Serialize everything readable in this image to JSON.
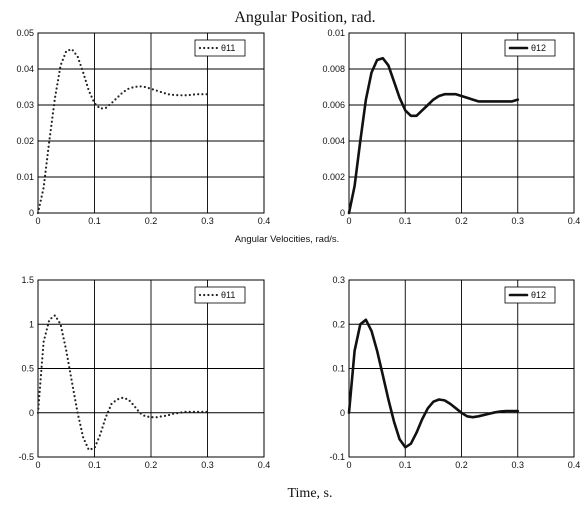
{
  "figure": {
    "title": "Angular Position, rad.",
    "middle_label": "Angular Velocities, rad/s.",
    "xlabel": "Time, s."
  },
  "chart_data": [
    {
      "type": "line",
      "xlim": [
        0,
        0.4
      ],
      "ylim": [
        0,
        0.05
      ],
      "xticks": [
        "0",
        "0.1",
        "0.2",
        "0.3",
        "0.4"
      ],
      "yticks": [
        "0",
        "0.01",
        "0.02",
        "0.03",
        "0.04",
        "0.05"
      ],
      "grid": true,
      "legend": "top-right",
      "series": [
        {
          "name": "θ11",
          "style": "dotted",
          "color": "#222222",
          "x": [
            0,
            0.01,
            0.02,
            0.03,
            0.04,
            0.05,
            0.06,
            0.07,
            0.08,
            0.09,
            0.1,
            0.11,
            0.12,
            0.13,
            0.14,
            0.15,
            0.16,
            0.17,
            0.18,
            0.19,
            0.2,
            0.21,
            0.22,
            0.23,
            0.24,
            0.25,
            0.26,
            0.27,
            0.28,
            0.29,
            0.3
          ],
          "y": [
            0,
            0.007,
            0.02,
            0.032,
            0.041,
            0.045,
            0.0455,
            0.0435,
            0.039,
            0.034,
            0.0305,
            0.029,
            0.0292,
            0.0305,
            0.032,
            0.0335,
            0.0345,
            0.035,
            0.0352,
            0.035,
            0.0345,
            0.034,
            0.0335,
            0.033,
            0.0328,
            0.0327,
            0.0327,
            0.0328,
            0.033,
            0.033,
            0.033
          ]
        }
      ]
    },
    {
      "type": "line",
      "xlim": [
        0,
        0.4
      ],
      "ylim": [
        0,
        0.01
      ],
      "xticks": [
        "0",
        "0.1",
        "0.2",
        "0.3",
        "0.4"
      ],
      "yticks": [
        "0",
        "0.002",
        "0.004",
        "0.006",
        "0.008",
        "0.01"
      ],
      "grid": true,
      "legend": "top-right",
      "series": [
        {
          "name": "θ12",
          "style": "solid-thick",
          "color": "#111111",
          "x": [
            0,
            0.01,
            0.02,
            0.03,
            0.04,
            0.05,
            0.06,
            0.07,
            0.08,
            0.09,
            0.1,
            0.11,
            0.12,
            0.13,
            0.14,
            0.15,
            0.16,
            0.17,
            0.18,
            0.19,
            0.2,
            0.21,
            0.22,
            0.23,
            0.24,
            0.25,
            0.26,
            0.27,
            0.28,
            0.29,
            0.3
          ],
          "y": [
            0,
            0.0015,
            0.004,
            0.0063,
            0.0078,
            0.0085,
            0.0086,
            0.0082,
            0.0073,
            0.0064,
            0.0057,
            0.0054,
            0.0054,
            0.0057,
            0.006,
            0.0063,
            0.0065,
            0.0066,
            0.0066,
            0.0066,
            0.0065,
            0.0064,
            0.0063,
            0.0062,
            0.0062,
            0.0062,
            0.0062,
            0.0062,
            0.0062,
            0.0062,
            0.0063
          ]
        }
      ]
    },
    {
      "type": "line",
      "xlim": [
        0,
        0.4
      ],
      "ylim": [
        -0.5,
        1.5
      ],
      "xticks": [
        "0",
        "0.1",
        "0.2",
        "0.3",
        "0.4"
      ],
      "yticks": [
        "-0.5",
        "0",
        "0.5",
        "1",
        "1.5"
      ],
      "grid": true,
      "legend": "top-right",
      "series": [
        {
          "name": "θ11",
          "style": "dotted",
          "color": "#222222",
          "x": [
            0,
            0.01,
            0.02,
            0.03,
            0.04,
            0.05,
            0.06,
            0.07,
            0.08,
            0.09,
            0.1,
            0.11,
            0.12,
            0.13,
            0.14,
            0.15,
            0.16,
            0.17,
            0.18,
            0.19,
            0.2,
            0.21,
            0.22,
            0.23,
            0.24,
            0.25,
            0.26,
            0.27,
            0.28,
            0.29,
            0.3
          ],
          "y": [
            0,
            0.8,
            1.05,
            1.1,
            1.0,
            0.7,
            0.35,
            0.0,
            -0.28,
            -0.42,
            -0.4,
            -0.25,
            -0.05,
            0.1,
            0.15,
            0.17,
            0.15,
            0.08,
            0.0,
            -0.04,
            -0.05,
            -0.05,
            -0.04,
            -0.03,
            -0.01,
            0.0,
            0.01,
            0.01,
            0.01,
            0.01,
            0.01
          ]
        }
      ]
    },
    {
      "type": "line",
      "xlim": [
        0,
        0.4
      ],
      "ylim": [
        -0.1,
        0.3
      ],
      "xticks": [
        "0",
        "0.1",
        "0.2",
        "0.3",
        "0.4"
      ],
      "yticks": [
        "-0.1",
        "0",
        "0.1",
        "0.2",
        "0.3"
      ],
      "grid": true,
      "legend": "top-right",
      "series": [
        {
          "name": "θ12",
          "style": "solid-thick",
          "color": "#111111",
          "x": [
            0,
            0.01,
            0.02,
            0.03,
            0.04,
            0.05,
            0.06,
            0.07,
            0.08,
            0.09,
            0.1,
            0.11,
            0.12,
            0.13,
            0.14,
            0.15,
            0.16,
            0.17,
            0.18,
            0.19,
            0.2,
            0.21,
            0.22,
            0.23,
            0.24,
            0.25,
            0.26,
            0.27,
            0.28,
            0.29,
            0.3
          ],
          "y": [
            0,
            0.14,
            0.2,
            0.21,
            0.185,
            0.14,
            0.085,
            0.03,
            -0.02,
            -0.06,
            -0.078,
            -0.07,
            -0.045,
            -0.015,
            0.01,
            0.025,
            0.03,
            0.028,
            0.02,
            0.01,
            0.0,
            -0.008,
            -0.01,
            -0.008,
            -0.005,
            -0.002,
            0.001,
            0.003,
            0.004,
            0.004,
            0.004
          ]
        }
      ]
    }
  ]
}
